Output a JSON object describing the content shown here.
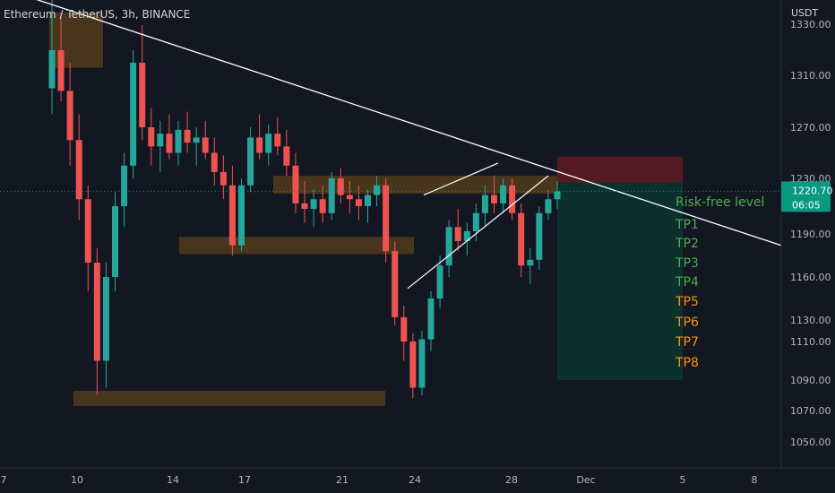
{
  "header": {
    "symbol_line": "Ethereum / TetherUS, 3h, BINANCE",
    "currency": "USDT"
  },
  "price_tag": {
    "value": "1220.70",
    "countdown": "06:05",
    "color": "#089981"
  },
  "colors": {
    "background": "#131722",
    "up": "#26a69a",
    "down": "#ef5350",
    "zone": "#8a5a14",
    "stop": "#8b1d22",
    "target": "#0b3b32",
    "trendline": "#ffffff",
    "tp_green": "#4caf50",
    "tp_orange": "#f7931a"
  },
  "labels": {
    "risk_free": "Risk-free level",
    "tps": [
      {
        "label": "TP1",
        "color": "green"
      },
      {
        "label": "TP2",
        "color": "green"
      },
      {
        "label": "TP3",
        "color": "green"
      },
      {
        "label": "TP4",
        "color": "green"
      },
      {
        "label": "TP5",
        "color": "orange"
      },
      {
        "label": "TP6",
        "color": "orange"
      },
      {
        "label": "TP7",
        "color": "orange"
      },
      {
        "label": "TP8",
        "color": "orange"
      }
    ]
  },
  "chart_data": {
    "type": "candlestick",
    "y_axis": {
      "ticks": [
        "1310.00",
        "1270.00",
        "1230.00",
        "1190.00",
        "1160.00",
        "1130.00",
        "1110.00",
        "1090.00",
        "1070.00",
        "1050.00"
      ],
      "partial_top_tick": "1330.00"
    },
    "x_axis": {
      "ticks": [
        "7",
        "10",
        "14",
        "17",
        "21",
        "24",
        "28",
        "Dec",
        "5",
        "8"
      ]
    },
    "current_price": 1220.7,
    "series": [
      {
        "o": 1300,
        "h": 1340,
        "l": 1280,
        "c": 1320
      },
      {
        "o": 1320,
        "h": 1335,
        "l": 1290,
        "c": 1298
      },
      {
        "o": 1298,
        "h": 1315,
        "l": 1240,
        "c": 1260
      },
      {
        "o": 1260,
        "h": 1280,
        "l": 1200,
        "c": 1215
      },
      {
        "o": 1215,
        "h": 1225,
        "l": 1150,
        "c": 1170
      },
      {
        "o": 1170,
        "h": 1180,
        "l": 1080,
        "c": 1100
      },
      {
        "o": 1100,
        "h": 1170,
        "l": 1085,
        "c": 1160
      },
      {
        "o": 1160,
        "h": 1220,
        "l": 1150,
        "c": 1210
      },
      {
        "o": 1210,
        "h": 1250,
        "l": 1195,
        "c": 1240
      },
      {
        "o": 1240,
        "h": 1320,
        "l": 1230,
        "c": 1315
      },
      {
        "o": 1315,
        "h": 1330,
        "l": 1260,
        "c": 1270
      },
      {
        "o": 1270,
        "h": 1285,
        "l": 1240,
        "c": 1255
      },
      {
        "o": 1255,
        "h": 1275,
        "l": 1235,
        "c": 1265
      },
      {
        "o": 1265,
        "h": 1280,
        "l": 1245,
        "c": 1250
      },
      {
        "o": 1250,
        "h": 1275,
        "l": 1240,
        "c": 1268
      },
      {
        "o": 1268,
        "h": 1282,
        "l": 1250,
        "c": 1258
      },
      {
        "o": 1258,
        "h": 1270,
        "l": 1240,
        "c": 1262
      },
      {
        "o": 1262,
        "h": 1275,
        "l": 1245,
        "c": 1250
      },
      {
        "o": 1250,
        "h": 1262,
        "l": 1225,
        "c": 1235
      },
      {
        "o": 1235,
        "h": 1248,
        "l": 1215,
        "c": 1225
      },
      {
        "o": 1225,
        "h": 1240,
        "l": 1175,
        "c": 1182
      },
      {
        "o": 1182,
        "h": 1230,
        "l": 1178,
        "c": 1225
      },
      {
        "o": 1225,
        "h": 1270,
        "l": 1220,
        "c": 1262
      },
      {
        "o": 1262,
        "h": 1280,
        "l": 1245,
        "c": 1250
      },
      {
        "o": 1250,
        "h": 1272,
        "l": 1240,
        "c": 1265
      },
      {
        "o": 1265,
        "h": 1278,
        "l": 1248,
        "c": 1255
      },
      {
        "o": 1255,
        "h": 1268,
        "l": 1232,
        "c": 1240
      },
      {
        "o": 1240,
        "h": 1250,
        "l": 1205,
        "c": 1212
      },
      {
        "o": 1212,
        "h": 1228,
        "l": 1198,
        "c": 1208
      },
      {
        "o": 1208,
        "h": 1222,
        "l": 1195,
        "c": 1215
      },
      {
        "o": 1215,
        "h": 1225,
        "l": 1198,
        "c": 1205
      },
      {
        "o": 1205,
        "h": 1235,
        "l": 1200,
        "c": 1230
      },
      {
        "o": 1230,
        "h": 1238,
        "l": 1212,
        "c": 1218
      },
      {
        "o": 1218,
        "h": 1228,
        "l": 1205,
        "c": 1215
      },
      {
        "o": 1215,
        "h": 1225,
        "l": 1200,
        "c": 1210
      },
      {
        "o": 1210,
        "h": 1222,
        "l": 1198,
        "c": 1218
      },
      {
        "o": 1218,
        "h": 1232,
        "l": 1210,
        "c": 1225
      },
      {
        "o": 1225,
        "h": 1230,
        "l": 1170,
        "c": 1178
      },
      {
        "o": 1178,
        "h": 1185,
        "l": 1125,
        "c": 1132
      },
      {
        "o": 1132,
        "h": 1140,
        "l": 1100,
        "c": 1110
      },
      {
        "o": 1110,
        "h": 1118,
        "l": 1078,
        "c": 1085
      },
      {
        "o": 1085,
        "h": 1120,
        "l": 1080,
        "c": 1112
      },
      {
        "o": 1112,
        "h": 1150,
        "l": 1105,
        "c": 1145
      },
      {
        "o": 1145,
        "h": 1175,
        "l": 1138,
        "c": 1168
      },
      {
        "o": 1168,
        "h": 1200,
        "l": 1160,
        "c": 1195
      },
      {
        "o": 1195,
        "h": 1208,
        "l": 1178,
        "c": 1185
      },
      {
        "o": 1185,
        "h": 1198,
        "l": 1175,
        "c": 1192
      },
      {
        "o": 1192,
        "h": 1212,
        "l": 1185,
        "c": 1205
      },
      {
        "o": 1205,
        "h": 1225,
        "l": 1195,
        "c": 1218
      },
      {
        "o": 1218,
        "h": 1232,
        "l": 1205,
        "c": 1212
      },
      {
        "o": 1212,
        "h": 1230,
        "l": 1205,
        "c": 1225
      },
      {
        "o": 1225,
        "h": 1230,
        "l": 1200,
        "c": 1205
      },
      {
        "o": 1205,
        "h": 1212,
        "l": 1160,
        "c": 1168
      },
      {
        "o": 1168,
        "h": 1180,
        "l": 1155,
        "c": 1172
      },
      {
        "o": 1172,
        "h": 1210,
        "l": 1165,
        "c": 1205
      },
      {
        "o": 1205,
        "h": 1222,
        "l": 1200,
        "c": 1215
      },
      {
        "o": 1215,
        "h": 1228,
        "l": 1208,
        "c": 1220.7
      }
    ],
    "zones": [
      {
        "name": "top-zone",
        "from": 1335,
        "to": 1313
      },
      {
        "name": "upper-resistance",
        "from": 1232,
        "to": 1219
      },
      {
        "name": "mid-support",
        "from": 1188,
        "to": 1176
      },
      {
        "name": "bottom-support",
        "from": 1083,
        "to": 1073
      }
    ],
    "position": {
      "stop_from": 1247,
      "stop_to": 1227,
      "target_to": 1090
    }
  }
}
